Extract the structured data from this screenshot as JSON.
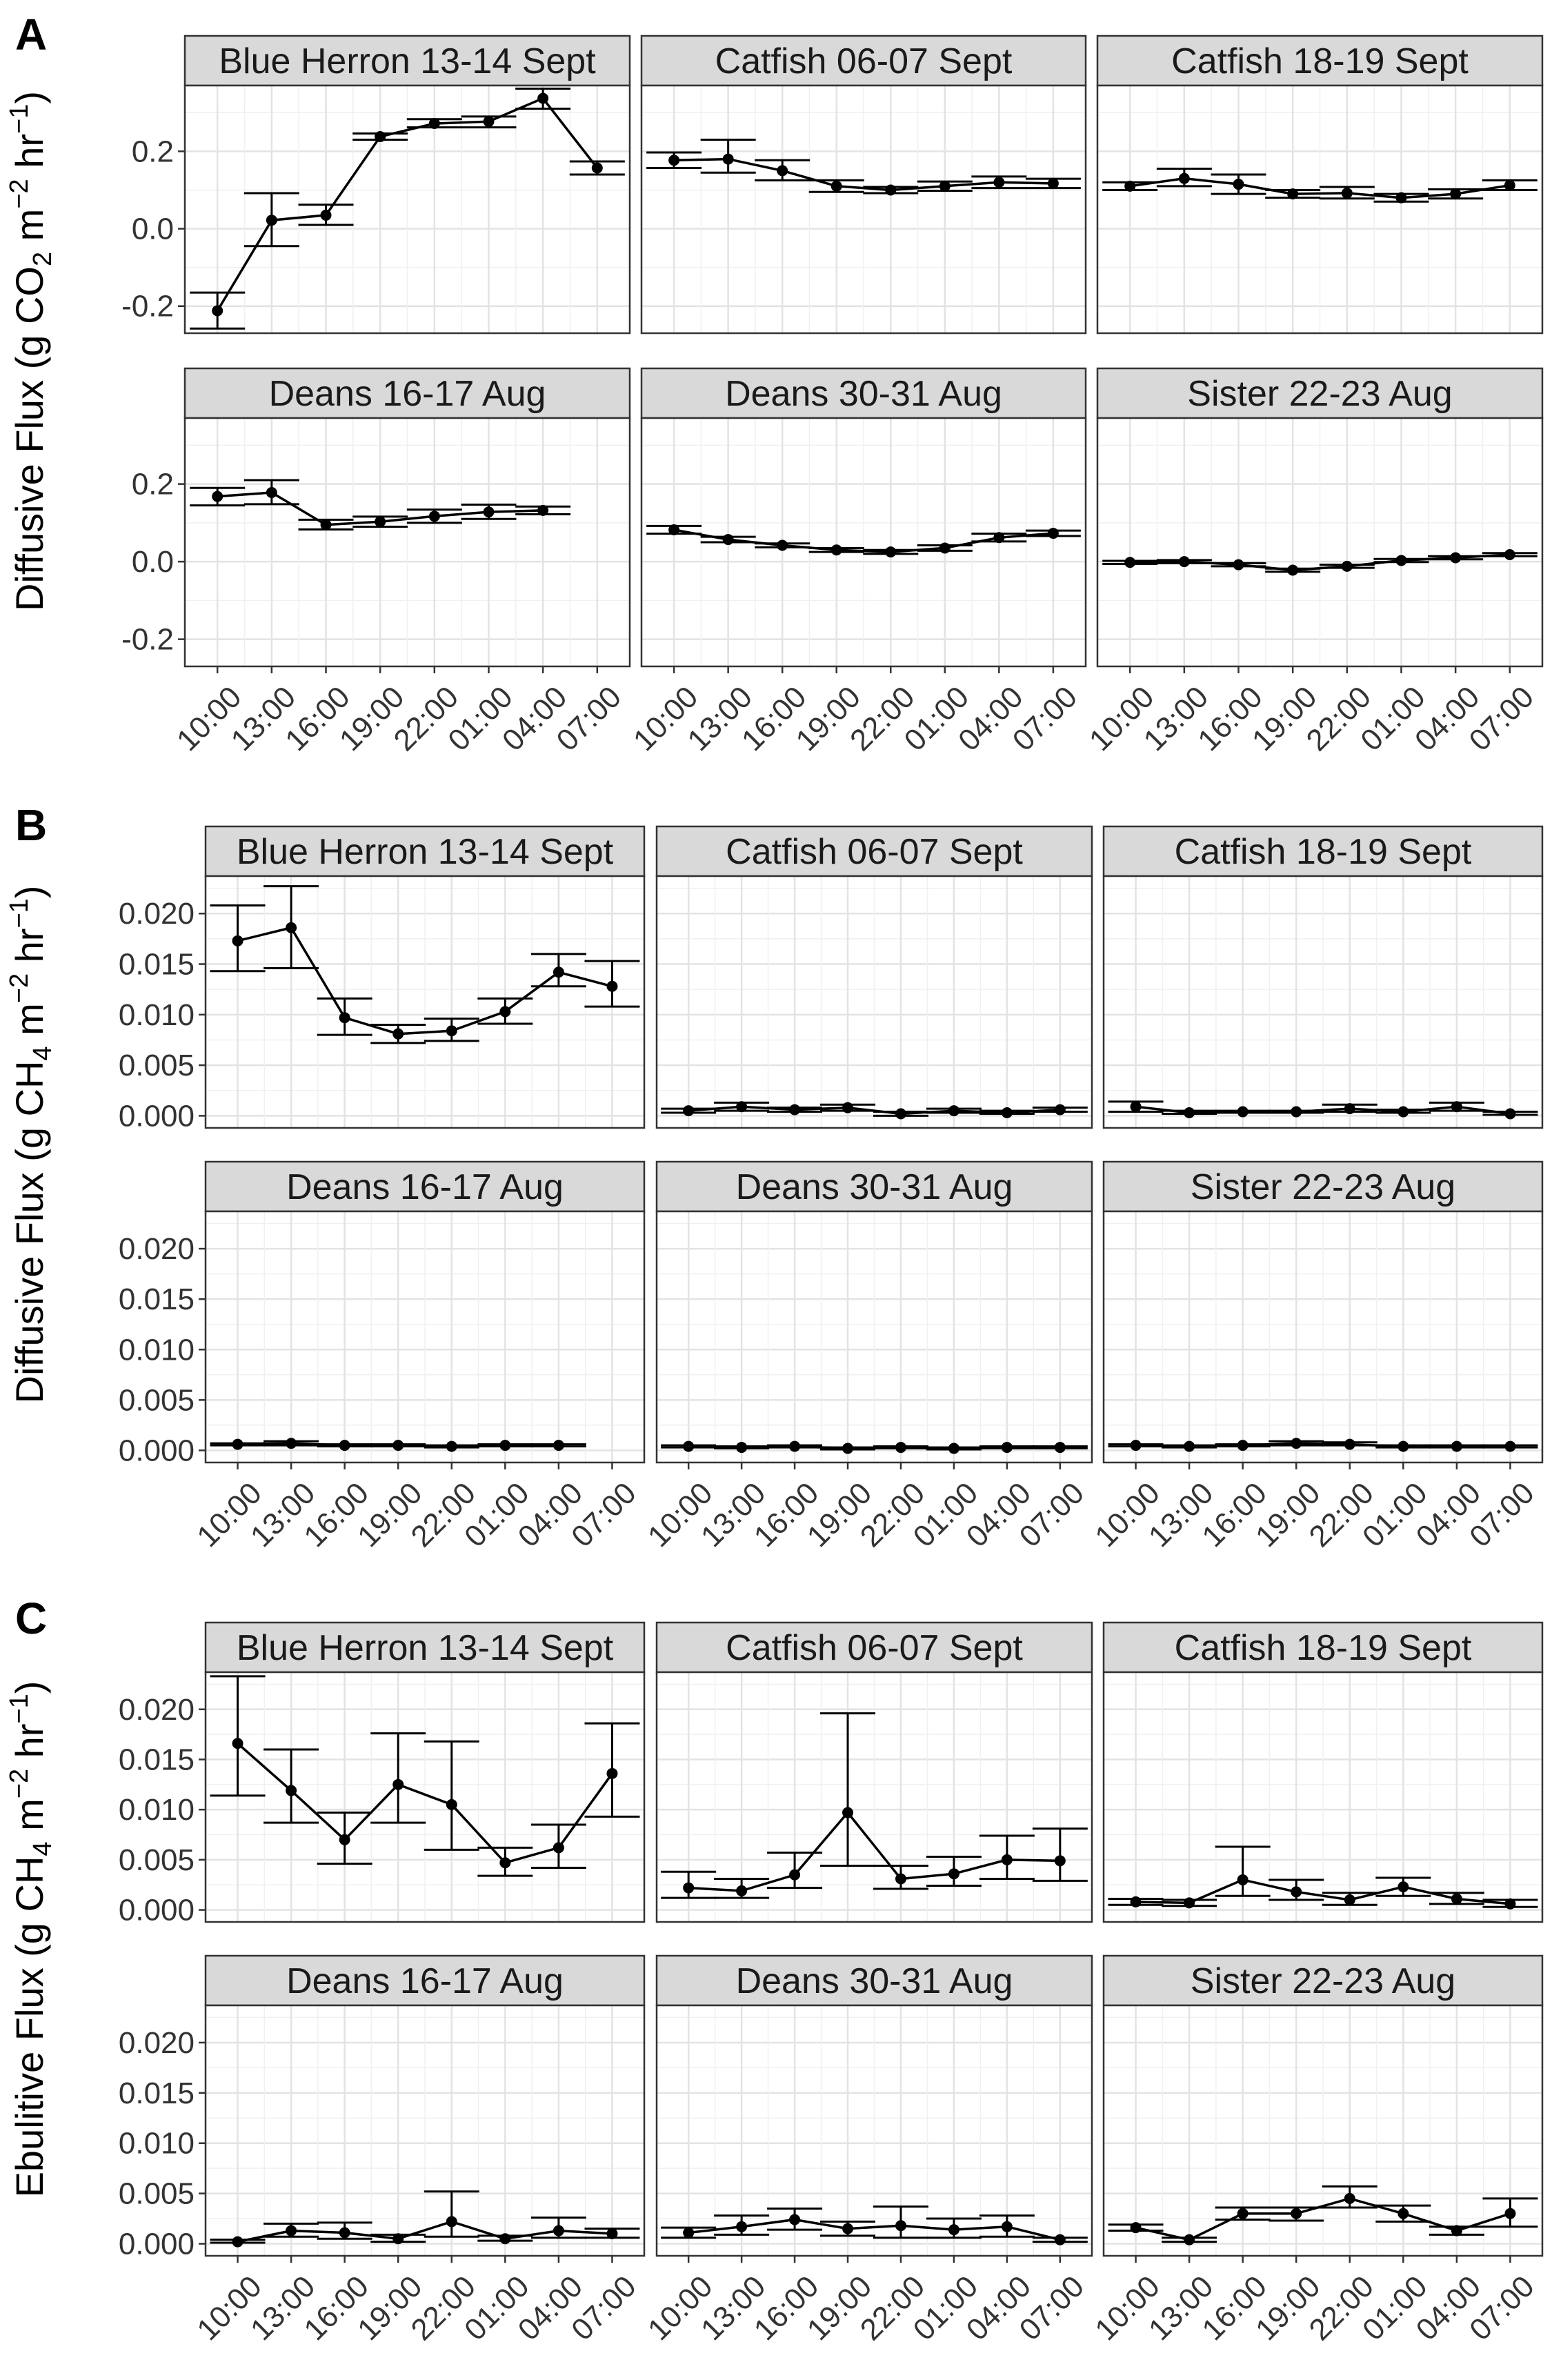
{
  "figure": {
    "times": [
      "10:00",
      "13:00",
      "16:00",
      "19:00",
      "22:00",
      "01:00",
      "04:00",
      "07:00"
    ]
  },
  "chart_data": [
    {
      "type": "line",
      "panel_label": "A",
      "ylabel": {
        "pre": "Diffusive Flux (g CO",
        "sub": "2",
        "mid": " m",
        "sup1": "−2",
        "mid2": " hr",
        "sup2": "−1",
        "post": ")"
      },
      "ylim": [
        -0.27,
        0.37
      ],
      "yticks": [
        -0.2,
        0.0,
        0.2
      ],
      "ytick_labels": [
        "-0.2",
        "0.0",
        "0.2"
      ],
      "x": [
        "10:00",
        "13:00",
        "16:00",
        "19:00",
        "22:00",
        "01:00",
        "04:00",
        "07:00"
      ],
      "facets": [
        {
          "title": "Blue Herron 13-14 Sept",
          "y": [
            -0.212,
            0.022,
            0.035,
            0.238,
            0.272,
            0.277,
            0.337,
            0.157
          ],
          "ymin": [
            -0.258,
            -0.045,
            0.01,
            0.23,
            0.262,
            0.262,
            0.31,
            0.14
          ],
          "ymax": [
            -0.165,
            0.092,
            0.062,
            0.246,
            0.283,
            0.29,
            0.362,
            0.174
          ]
        },
        {
          "title": "Catfish 06-07 Sept",
          "y": [
            0.177,
            0.18,
            0.15,
            0.11,
            0.1,
            0.11,
            0.12,
            0.117
          ],
          "ymin": [
            0.157,
            0.145,
            0.125,
            0.095,
            0.092,
            0.098,
            0.105,
            0.105
          ],
          "ymax": [
            0.197,
            0.23,
            0.177,
            0.125,
            0.108,
            0.122,
            0.135,
            0.129
          ]
        },
        {
          "title": "Catfish 18-19 Sept",
          "y": [
            0.11,
            0.13,
            0.115,
            0.09,
            0.092,
            0.08,
            0.09,
            0.112
          ],
          "ymin": [
            0.1,
            0.11,
            0.09,
            0.08,
            0.078,
            0.07,
            0.078,
            0.1
          ],
          "ymax": [
            0.12,
            0.155,
            0.14,
            0.1,
            0.108,
            0.09,
            0.102,
            0.125
          ]
        },
        {
          "title": "Deans 16-17 Aug",
          "y": [
            0.168,
            0.178,
            0.095,
            0.103,
            0.117,
            0.128,
            0.132,
            null
          ],
          "ymin": [
            0.145,
            0.148,
            0.083,
            0.09,
            0.1,
            0.11,
            0.122,
            null
          ],
          "ymax": [
            0.19,
            0.21,
            0.108,
            0.116,
            0.134,
            0.147,
            0.142,
            null
          ]
        },
        {
          "title": "Deans 30-31 Aug",
          "y": [
            0.082,
            0.057,
            0.042,
            0.03,
            0.025,
            0.035,
            0.062,
            0.073
          ],
          "ymin": [
            0.072,
            0.05,
            0.037,
            0.025,
            0.02,
            0.028,
            0.052,
            0.066
          ],
          "ymax": [
            0.092,
            0.064,
            0.047,
            0.035,
            0.03,
            0.042,
            0.072,
            0.08
          ]
        },
        {
          "title": "Sister 22-23 Aug",
          "y": [
            -0.002,
            0.0,
            -0.008,
            -0.022,
            -0.012,
            0.003,
            0.01,
            0.018
          ],
          "ymin": [
            -0.006,
            -0.004,
            -0.012,
            -0.026,
            -0.016,
            -0.001,
            0.006,
            0.014
          ],
          "ymax": [
            0.002,
            0.004,
            -0.004,
            -0.018,
            -0.008,
            0.007,
            0.014,
            0.022
          ]
        }
      ]
    },
    {
      "type": "line",
      "panel_label": "B",
      "ylabel": {
        "pre": "Diffusive Flux (g CH",
        "sub": "4",
        "mid": " m",
        "sup1": "−2",
        "mid2": " hr",
        "sup2": "−1",
        "post": ")"
      },
      "ylim": [
        -0.0012,
        0.0237
      ],
      "yticks": [
        0.0,
        0.005,
        0.01,
        0.015,
        0.02
      ],
      "ytick_labels": [
        "0.000",
        "0.005",
        "0.010",
        "0.015",
        "0.020"
      ],
      "x": [
        "10:00",
        "13:00",
        "16:00",
        "19:00",
        "22:00",
        "01:00",
        "04:00",
        "07:00"
      ],
      "facets": [
        {
          "title": "Blue Herron 13-14 Sept",
          "y": [
            0.0173,
            0.0186,
            0.0097,
            0.0081,
            0.0084,
            0.0103,
            0.0142,
            0.0128
          ],
          "ymin": [
            0.0143,
            0.0146,
            0.008,
            0.0072,
            0.0074,
            0.0091,
            0.0128,
            0.0108
          ],
          "ymax": [
            0.0208,
            0.0227,
            0.0116,
            0.009,
            0.0096,
            0.0116,
            0.016,
            0.0153
          ]
        },
        {
          "title": "Catfish 06-07 Sept",
          "y": [
            0.0005,
            0.0009,
            0.0006,
            0.0008,
            0.0002,
            0.0005,
            0.0003,
            0.0006
          ],
          "ymin": [
            0.0003,
            0.0005,
            0.0004,
            0.0005,
            0.0,
            0.0003,
            0.0002,
            0.0004
          ],
          "ymax": [
            0.0007,
            0.0013,
            0.0008,
            0.0011,
            0.0004,
            0.0007,
            0.0005,
            0.0008
          ]
        },
        {
          "title": "Catfish 18-19 Sept",
          "y": [
            0.0009,
            0.0003,
            0.0004,
            0.0004,
            0.0007,
            0.0004,
            0.0009,
            0.0002
          ],
          "ymin": [
            0.0004,
            0.0002,
            0.0003,
            0.0003,
            0.0004,
            0.0003,
            0.0005,
            0.0001
          ],
          "ymax": [
            0.0014,
            0.0005,
            0.0005,
            0.0005,
            0.0011,
            0.0006,
            0.0013,
            0.0004
          ]
        },
        {
          "title": "Deans 16-17 Aug",
          "y": [
            0.0006,
            0.0007,
            0.0005,
            0.0005,
            0.0004,
            0.0005,
            0.0005,
            null
          ],
          "ymin": [
            0.0005,
            0.0005,
            0.0004,
            0.0004,
            0.0003,
            0.0004,
            0.0004,
            null
          ],
          "ymax": [
            0.0007,
            0.0009,
            0.0006,
            0.0006,
            0.0005,
            0.0006,
            0.0006,
            null
          ]
        },
        {
          "title": "Deans 30-31 Aug",
          "y": [
            0.0004,
            0.0003,
            0.0004,
            0.0002,
            0.0003,
            0.0002,
            0.0003,
            0.0003
          ],
          "ymin": [
            0.0003,
            0.0002,
            0.0003,
            0.0001,
            0.0002,
            0.0001,
            0.0002,
            0.0002
          ],
          "ymax": [
            0.0005,
            0.0004,
            0.0005,
            0.0003,
            0.0004,
            0.0003,
            0.0004,
            0.0004
          ]
        },
        {
          "title": "Sister 22-23 Aug",
          "y": [
            0.0005,
            0.0004,
            0.0005,
            0.0007,
            0.0006,
            0.0004,
            0.0004,
            0.0004
          ],
          "ymin": [
            0.0004,
            0.0003,
            0.0004,
            0.0005,
            0.0005,
            0.0003,
            0.0003,
            0.0003
          ],
          "ymax": [
            0.0006,
            0.0005,
            0.0006,
            0.0009,
            0.0008,
            0.0005,
            0.0005,
            0.0005
          ]
        }
      ]
    },
    {
      "type": "line",
      "panel_label": "C",
      "ylabel": {
        "pre": "Ebulitive Flux (g CH",
        "sub": "4",
        "mid": " m",
        "sup1": "−2",
        "mid2": " hr",
        "sup2": "−1",
        "post": ")"
      },
      "ylim": [
        -0.0012,
        0.0237
      ],
      "yticks": [
        0.0,
        0.005,
        0.01,
        0.015,
        0.02
      ],
      "ytick_labels": [
        "0.000",
        "0.005",
        "0.010",
        "0.015",
        "0.020"
      ],
      "x": [
        "10:00",
        "13:00",
        "16:00",
        "19:00",
        "22:00",
        "01:00",
        "04:00",
        "07:00"
      ],
      "facets": [
        {
          "title": "Blue Herron 13-14 Sept",
          "y": [
            0.0166,
            0.0119,
            0.007,
            0.0125,
            0.0105,
            0.0047,
            0.0062,
            0.0136
          ],
          "ymin": [
            0.0114,
            0.0087,
            0.0046,
            0.0087,
            0.006,
            0.0034,
            0.0042,
            0.0093
          ],
          "ymax": [
            0.0233,
            0.016,
            0.0097,
            0.0176,
            0.0168,
            0.0062,
            0.0085,
            0.0186
          ]
        },
        {
          "title": "Catfish 06-07 Sept",
          "y": [
            0.0022,
            0.0019,
            0.0035,
            0.0097,
            0.0031,
            0.0036,
            0.005,
            0.0049
          ],
          "ymin": [
            0.0012,
            0.0012,
            0.0022,
            0.0044,
            0.0021,
            0.0024,
            0.0031,
            0.0029
          ],
          "ymax": [
            0.0038,
            0.0031,
            0.0057,
            0.0196,
            0.0044,
            0.0053,
            0.0074,
            0.0081
          ]
        },
        {
          "title": "Catfish 18-19 Sept",
          "y": [
            0.0008,
            0.0007,
            0.003,
            0.0018,
            0.001,
            0.0023,
            0.0011,
            0.0006
          ],
          "ymin": [
            0.0005,
            0.0004,
            0.0014,
            0.001,
            0.0005,
            0.0014,
            0.0006,
            0.0003
          ],
          "ymax": [
            0.0011,
            0.001,
            0.0063,
            0.003,
            0.0017,
            0.0032,
            0.0017,
            0.001
          ]
        },
        {
          "title": "Deans 16-17 Aug",
          "y": [
            0.0002,
            0.0013,
            0.0011,
            0.0005,
            0.0022,
            0.0005,
            0.0013,
            0.001
          ],
          "ymin": [
            0.0001,
            0.0007,
            0.0005,
            0.0002,
            0.0007,
            0.0003,
            0.0006,
            0.0006
          ],
          "ymax": [
            0.0004,
            0.002,
            0.0021,
            0.0009,
            0.0052,
            0.0008,
            0.0026,
            0.0015
          ]
        },
        {
          "title": "Deans 30-31 Aug",
          "y": [
            0.0011,
            0.0017,
            0.0024,
            0.0015,
            0.0018,
            0.0014,
            0.0017,
            0.0004
          ],
          "ymin": [
            0.0006,
            0.0009,
            0.0014,
            0.0008,
            0.0006,
            0.0006,
            0.0007,
            0.0002
          ],
          "ymax": [
            0.0016,
            0.0028,
            0.0035,
            0.0022,
            0.0037,
            0.0025,
            0.0028,
            0.0006
          ]
        },
        {
          "title": "Sister 22-23 Aug",
          "y": [
            0.0016,
            0.0004,
            0.003,
            0.003,
            0.0045,
            0.003,
            0.0013,
            0.003
          ],
          "ymin": [
            0.0013,
            0.0002,
            0.0024,
            0.0023,
            0.0036,
            0.0022,
            0.0009,
            0.0017
          ],
          "ymax": [
            0.0019,
            0.0006,
            0.0036,
            0.0036,
            0.0057,
            0.0038,
            0.0017,
            0.0045
          ]
        }
      ]
    }
  ]
}
